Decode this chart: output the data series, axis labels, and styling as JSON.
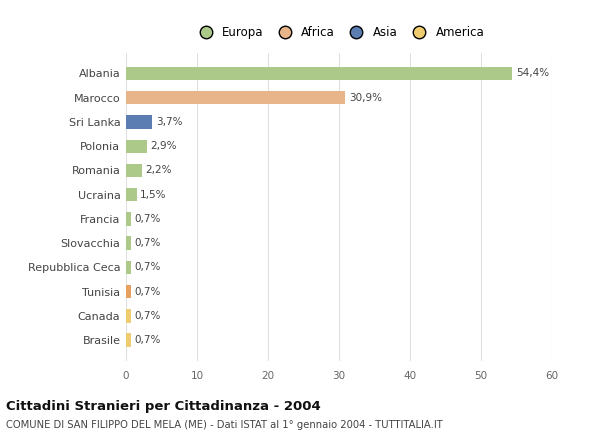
{
  "categories": [
    "Albania",
    "Marocco",
    "Sri Lanka",
    "Polonia",
    "Romania",
    "Ucraina",
    "Francia",
    "Slovacchia",
    "Repubblica Ceca",
    "Tunisia",
    "Canada",
    "Brasile"
  ],
  "values": [
    54.4,
    30.9,
    3.7,
    2.9,
    2.2,
    1.5,
    0.7,
    0.7,
    0.7,
    0.7,
    0.7,
    0.7
  ],
  "labels": [
    "54,4%",
    "30,9%",
    "3,7%",
    "2,9%",
    "2,2%",
    "1,5%",
    "0,7%",
    "0,7%",
    "0,7%",
    "0,7%",
    "0,7%",
    "0,7%"
  ],
  "colors": [
    "#adc98a",
    "#e8b48a",
    "#5b7db1",
    "#adc98a",
    "#adc98a",
    "#adc98a",
    "#adc98a",
    "#adc98a",
    "#adc98a",
    "#e8a060",
    "#f0cc70",
    "#f0cc70"
  ],
  "legend_labels": [
    "Europa",
    "Africa",
    "Asia",
    "America"
  ],
  "legend_colors": [
    "#adc98a",
    "#e8b48a",
    "#5b7db1",
    "#f0cc70"
  ],
  "title": "Cittadini Stranieri per Cittadinanza - 2004",
  "subtitle": "COMUNE DI SAN FILIPPO DEL MELA (ME) - Dati ISTAT al 1° gennaio 2004 - TUTTITALIA.IT",
  "xlim": [
    0,
    60
  ],
  "xticks": [
    0,
    10,
    20,
    30,
    40,
    50,
    60
  ],
  "background_color": "#ffffff",
  "grid_color": "#e0e0e0"
}
